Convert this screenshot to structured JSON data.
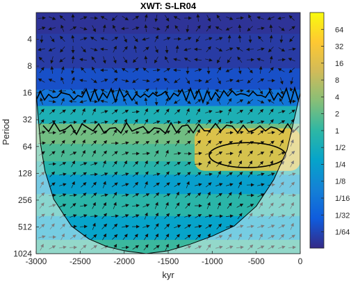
{
  "chart_data": {
    "type": "heatmap",
    "title": "XWT: S-LR04",
    "xlabel": "kyr",
    "ylabel": "Period",
    "xlim": [
      -3000,
      0
    ],
    "ylim": [
      2,
      1024
    ],
    "y_scale": "log2",
    "y_reversed": true,
    "x_ticks": [
      {
        "value": -3000,
        "label": "-3000"
      },
      {
        "value": -2500,
        "label": "-2500"
      },
      {
        "value": -2000,
        "label": "-2000"
      },
      {
        "value": -1500,
        "label": "-1500"
      },
      {
        "value": -1000,
        "label": "-1000"
      },
      {
        "value": -500,
        "label": "-500"
      },
      {
        "value": 0,
        "label": "0"
      }
    ],
    "y_ticks": [
      {
        "value": 4,
        "label": "4"
      },
      {
        "value": 8,
        "label": "8"
      },
      {
        "value": 16,
        "label": "16"
      },
      {
        "value": 32,
        "label": "32"
      },
      {
        "value": 64,
        "label": "64"
      },
      {
        "value": 128,
        "label": "128"
      },
      {
        "value": 256,
        "label": "256"
      },
      {
        "value": 512,
        "label": "512"
      },
      {
        "value": 1024,
        "label": "1024"
      }
    ],
    "colorbar": {
      "scale": "log2",
      "range": [
        0.008,
        128
      ],
      "ticks": [
        {
          "value": 64,
          "label": "64"
        },
        {
          "value": 32,
          "label": "32"
        },
        {
          "value": 16,
          "label": "16"
        },
        {
          "value": 8,
          "label": "8"
        },
        {
          "value": 4,
          "label": "4"
        },
        {
          "value": 2,
          "label": "2"
        },
        {
          "value": 1,
          "label": "1"
        },
        {
          "value": 0.5,
          "label": "1/2"
        },
        {
          "value": 0.25,
          "label": "1/4"
        },
        {
          "value": 0.125,
          "label": "1/8"
        },
        {
          "value": 0.0625,
          "label": "1/16"
        },
        {
          "value": 0.03125,
          "label": "1/32"
        },
        {
          "value": 0.015625,
          "label": "1/64"
        }
      ],
      "colors": [
        "#352a87",
        "#0f5cdd",
        "#1481d6",
        "#06a4ca",
        "#2eb7a4",
        "#87bf77",
        "#d1bb59",
        "#fec832",
        "#f9fb0e"
      ]
    },
    "power_bands": [
      {
        "period": 2,
        "power": 0.01
      },
      {
        "period": 6,
        "power": 0.012
      },
      {
        "period": 12,
        "power": 0.02
      },
      {
        "period": 18,
        "power": 0.06
      },
      {
        "period": 28,
        "power": 0.6
      },
      {
        "period": 45,
        "power": 2.5
      },
      {
        "period": 80,
        "power": 1.5
      },
      {
        "period": 110,
        "power": 0.8
      },
      {
        "period": 160,
        "power": 0.25
      },
      {
        "period": 300,
        "power": 0.9
      },
      {
        "period": 500,
        "power": 0.3
      },
      {
        "period": 1024,
        "power": 1.2
      }
    ],
    "high_power_region": {
      "x": [
        -1200,
        0
      ],
      "period": [
        40,
        120
      ],
      "power": 24
    },
    "cone_of_influence_edge_period": [
      [
        -3000,
        16
      ],
      [
        -2950,
        60
      ],
      [
        -2900,
        120
      ],
      [
        -2800,
        250
      ],
      [
        -2600,
        500
      ],
      [
        -2400,
        700
      ],
      [
        -2200,
        850
      ],
      [
        -2000,
        950
      ],
      [
        -1750,
        1024
      ],
      [
        -1500,
        950
      ],
      [
        -1250,
        800
      ],
      [
        -1000,
        650
      ],
      [
        -750,
        500
      ],
      [
        -500,
        300
      ],
      [
        -300,
        150
      ],
      [
        -150,
        70
      ],
      [
        0,
        16
      ]
    ]
  }
}
